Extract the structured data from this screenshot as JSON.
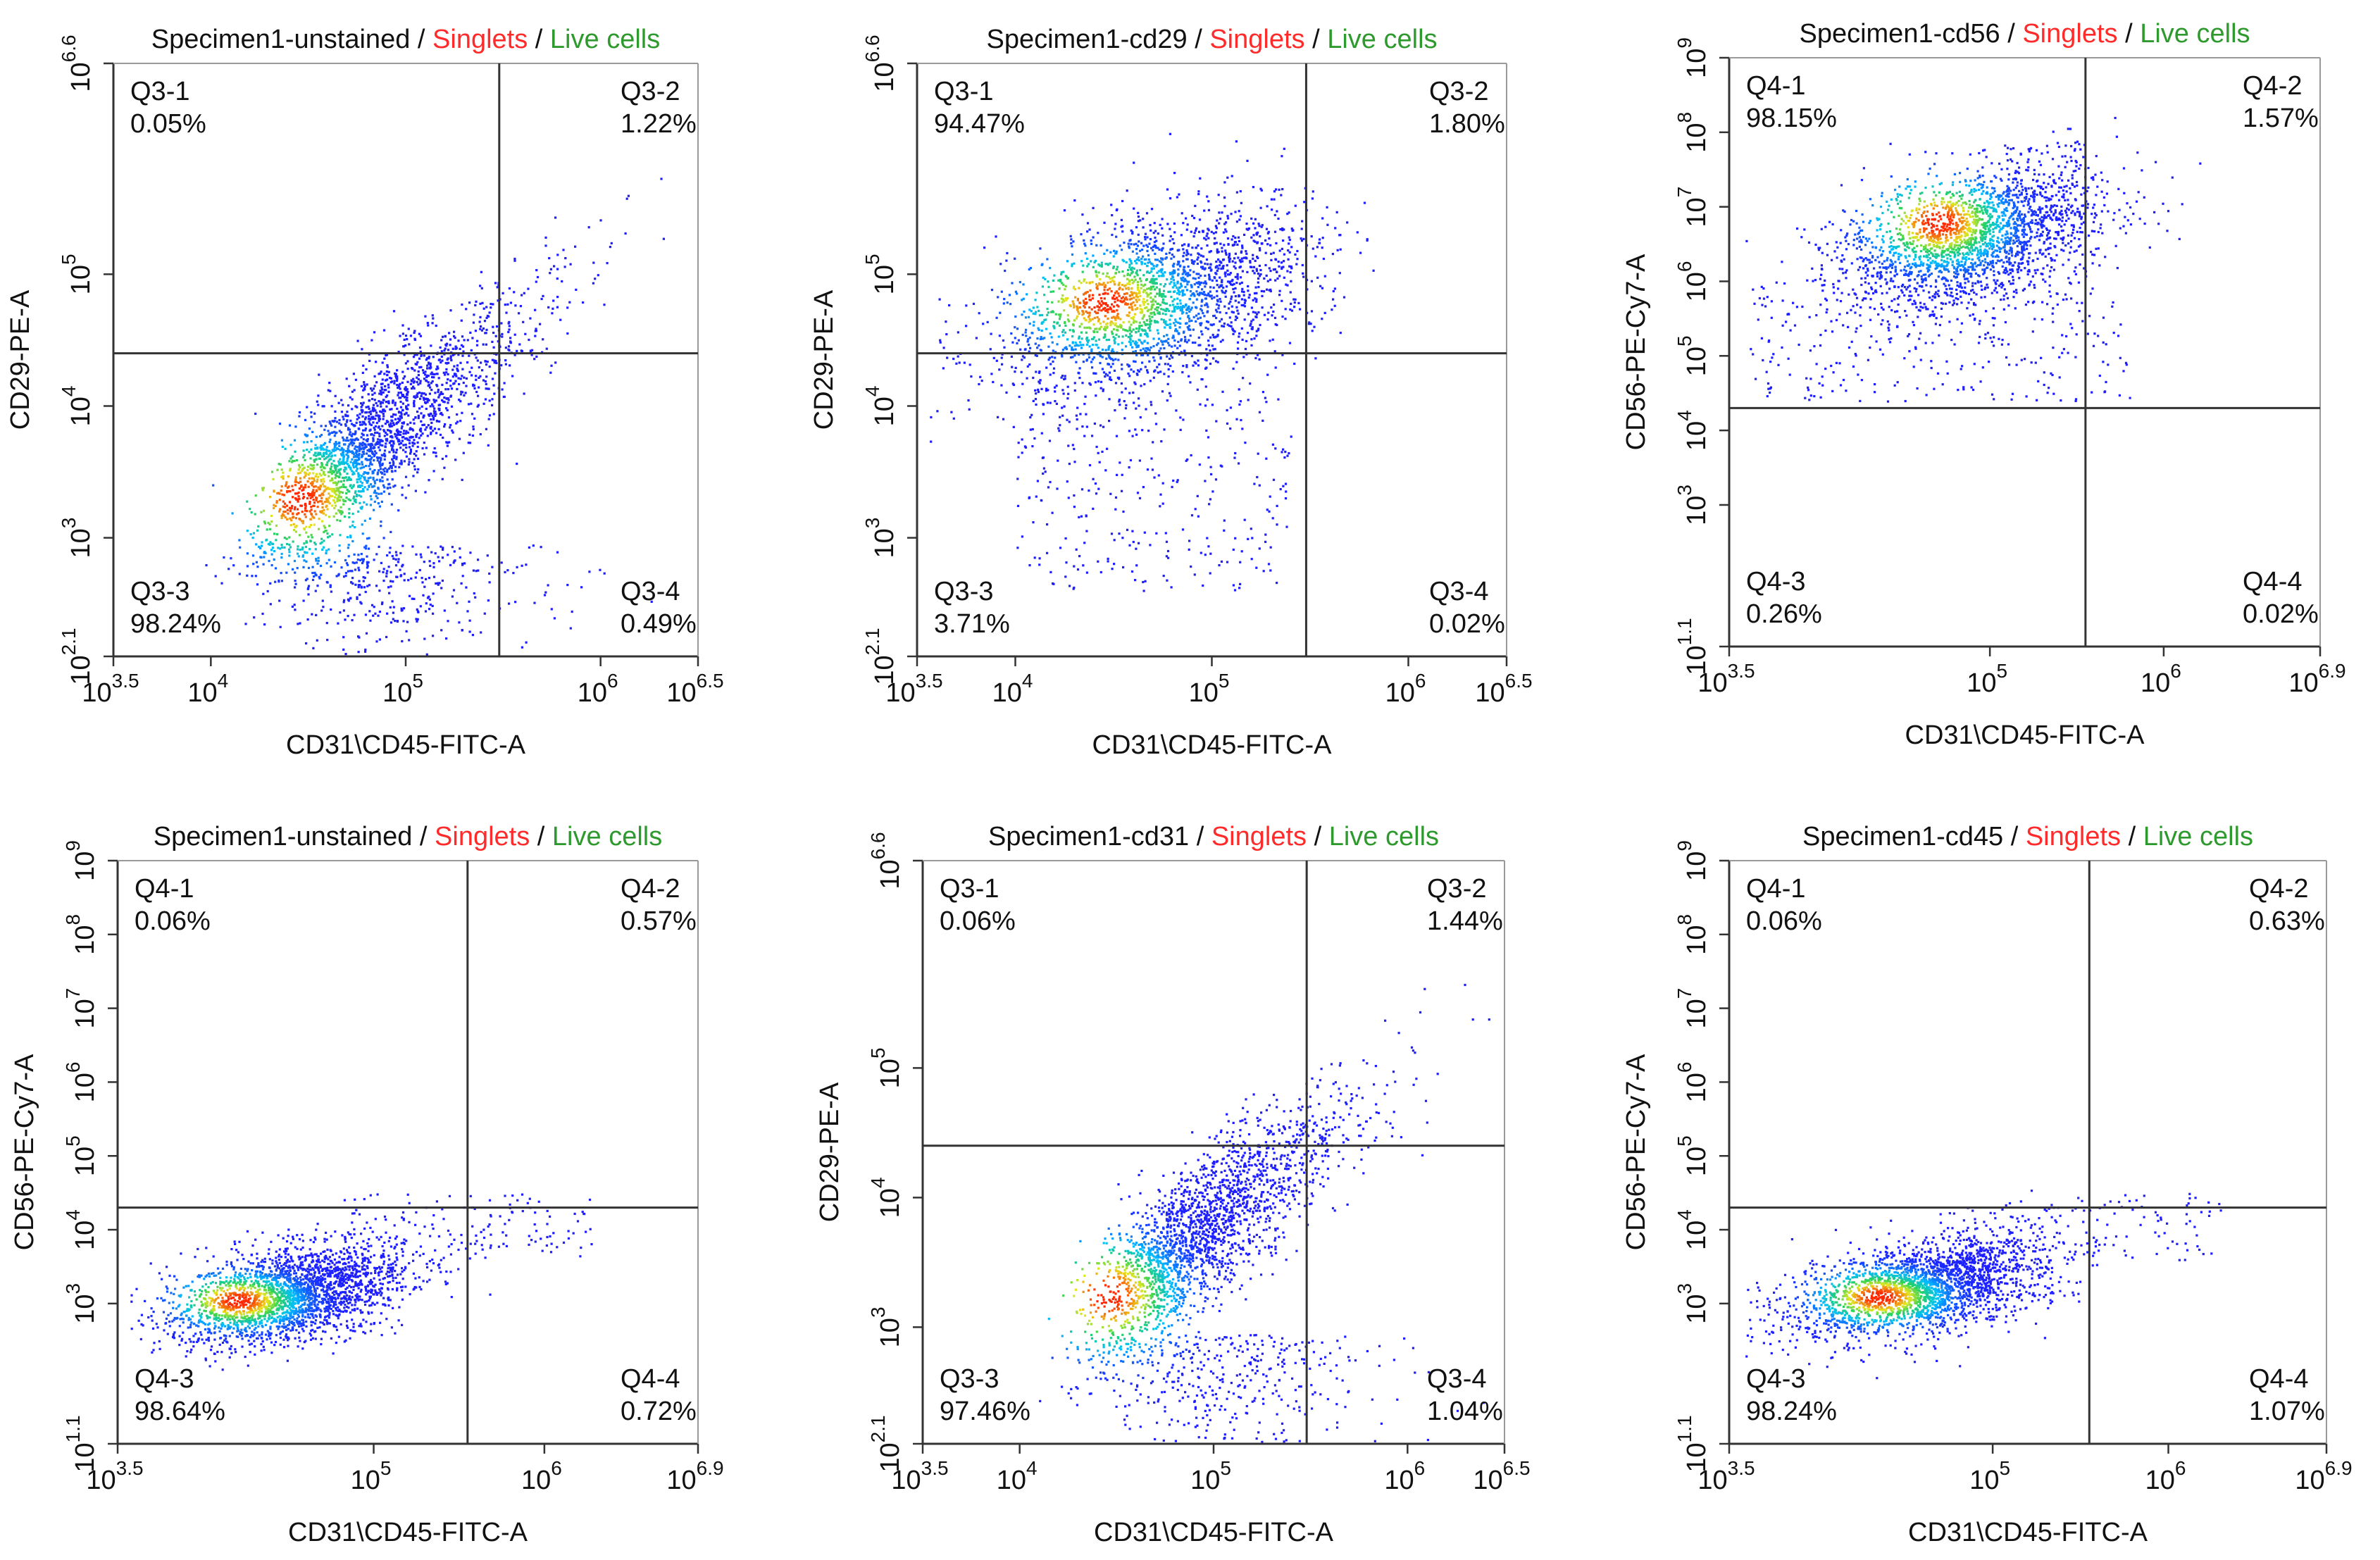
{
  "colors": {
    "singlets": "#ff2a2a",
    "live_cells": "#2e9a2e",
    "axis": "#333333",
    "gate": "#333333",
    "density_low": "#1a1aff",
    "density_mid": "#22cc66",
    "density_high": "#ff3300"
  },
  "chart_data": [
    {
      "type": "scatter",
      "title": {
        "specimen": "Specimen1-unstained",
        "sep1": " / ",
        "singlets": "Singlets",
        "sep2": " / ",
        "live": "Live cells"
      },
      "xlabel": "CD31\\CD45-FITC-A",
      "ylabel": "CD29-PE-A",
      "xlim": [
        3.5,
        6.5
      ],
      "ylim": [
        2.1,
        6.6
      ],
      "x_ticks": [
        {
          "base": "10",
          "exp": "3.5",
          "v": 3.5
        },
        {
          "base": "10",
          "exp": "4",
          "v": 4
        },
        {
          "base": "10",
          "exp": "5",
          "v": 5
        },
        {
          "base": "10",
          "exp": "6",
          "v": 6
        },
        {
          "base": "10",
          "exp": "6.5",
          "v": 6.5
        }
      ],
      "y_ticks": [
        {
          "base": "10",
          "exp": "2.1",
          "v": 2.1
        },
        {
          "base": "10",
          "exp": "3",
          "v": 3
        },
        {
          "base": "10",
          "exp": "4",
          "v": 4
        },
        {
          "base": "10",
          "exp": "5",
          "v": 5
        },
        {
          "base": "10",
          "exp": "6.6",
          "v": 6.6
        }
      ],
      "gate": {
        "x": 5.48,
        "y": 4.4
      },
      "quadrants": [
        {
          "name": "Q3-1",
          "value": "0.05%"
        },
        {
          "name": "Q3-2",
          "value": "1.22%"
        },
        {
          "name": "Q3-3",
          "value": "98.24%"
        },
        {
          "name": "Q3-4",
          "value": "0.49%"
        }
      ],
      "population": {
        "shape": "diagonal",
        "cx": 4.45,
        "cy": 3.3,
        "peak_x": 4.45,
        "peak_y": 3.3
      }
    },
    {
      "type": "scatter",
      "title": {
        "specimen": "Specimen1-cd29",
        "sep1": " / ",
        "singlets": "Singlets",
        "sep2": " / ",
        "live": "Live cells"
      },
      "xlabel": "CD31\\CD45-FITC-A",
      "ylabel": "CD29-PE-A",
      "xlim": [
        3.5,
        6.5
      ],
      "ylim": [
        2.1,
        6.6
      ],
      "x_ticks": [
        {
          "base": "10",
          "exp": "3.5",
          "v": 3.5
        },
        {
          "base": "10",
          "exp": "4",
          "v": 4
        },
        {
          "base": "10",
          "exp": "5",
          "v": 5
        },
        {
          "base": "10",
          "exp": "6",
          "v": 6
        },
        {
          "base": "10",
          "exp": "6.5",
          "v": 6.5
        }
      ],
      "y_ticks": [
        {
          "base": "10",
          "exp": "2.1",
          "v": 2.1
        },
        {
          "base": "10",
          "exp": "3",
          "v": 3
        },
        {
          "base": "10",
          "exp": "4",
          "v": 4
        },
        {
          "base": "10",
          "exp": "5",
          "v": 5
        },
        {
          "base": "10",
          "exp": "6.6",
          "v": 6.6
        }
      ],
      "gate": {
        "x": 5.48,
        "y": 4.4
      },
      "quadrants": [
        {
          "name": "Q3-1",
          "value": "94.47%"
        },
        {
          "name": "Q3-2",
          "value": "1.80%"
        },
        {
          "name": "Q3-3",
          "value": "3.71%"
        },
        {
          "name": "Q3-4",
          "value": "0.02%"
        }
      ],
      "population": {
        "shape": "blob",
        "cx": 4.6,
        "cy": 4.8,
        "peak_x": 4.45,
        "peak_y": 4.8
      }
    },
    {
      "type": "scatter",
      "title": {
        "specimen": "Specimen1-cd56",
        "sep1": " / ",
        "singlets": "Singlets",
        "sep2": " / ",
        "live": "Live cells"
      },
      "xlabel": "CD31\\CD45-FITC-A",
      "ylabel": "CD56-PE-Cy7-A",
      "xlim": [
        3.5,
        6.9
      ],
      "ylim": [
        1.1,
        9
      ],
      "x_ticks": [
        {
          "base": "10",
          "exp": "3.5",
          "v": 3.5
        },
        {
          "base": "10",
          "exp": "5",
          "v": 5
        },
        {
          "base": "10",
          "exp": "6",
          "v": 6
        },
        {
          "base": "10",
          "exp": "6.9",
          "v": 6.9
        }
      ],
      "y_ticks": [
        {
          "base": "10",
          "exp": "1.1",
          "v": 1.1
        },
        {
          "base": "10",
          "exp": "3",
          "v": 3
        },
        {
          "base": "10",
          "exp": "4",
          "v": 4
        },
        {
          "base": "10",
          "exp": "5",
          "v": 5
        },
        {
          "base": "10",
          "exp": "6",
          "v": 6
        },
        {
          "base": "10",
          "exp": "7",
          "v": 7
        },
        {
          "base": "10",
          "exp": "8",
          "v": 8
        },
        {
          "base": "10",
          "exp": "9",
          "v": 9
        }
      ],
      "gate": {
        "x": 5.55,
        "y": 4.3
      },
      "quadrants": [
        {
          "name": "Q4-1",
          "value": "98.15%"
        },
        {
          "name": "Q4-2",
          "value": "1.57%"
        },
        {
          "name": "Q4-3",
          "value": "0.26%"
        },
        {
          "name": "Q4-4",
          "value": "0.02%"
        }
      ],
      "population": {
        "shape": "blob_high",
        "cx": 4.9,
        "cy": 6.6,
        "peak_x": 4.7,
        "peak_y": 6.8
      }
    },
    {
      "type": "scatter",
      "title": {
        "specimen": "Specimen1-unstained",
        "sep1": " / ",
        "singlets": "Singlets",
        "sep2": " / ",
        "live": "Live cells"
      },
      "xlabel": "CD31\\CD45-FITC-A",
      "ylabel": "CD56-PE-Cy7-A",
      "xlim": [
        3.5,
        6.9
      ],
      "ylim": [
        1.1,
        9
      ],
      "x_ticks": [
        {
          "base": "10",
          "exp": "3.5",
          "v": 3.5
        },
        {
          "base": "10",
          "exp": "5",
          "v": 5
        },
        {
          "base": "10",
          "exp": "6",
          "v": 6
        },
        {
          "base": "10",
          "exp": "6.9",
          "v": 6.9
        }
      ],
      "y_ticks": [
        {
          "base": "10",
          "exp": "1.1",
          "v": 1.1
        },
        {
          "base": "10",
          "exp": "3",
          "v": 3
        },
        {
          "base": "10",
          "exp": "4",
          "v": 4
        },
        {
          "base": "10",
          "exp": "5",
          "v": 5
        },
        {
          "base": "10",
          "exp": "6",
          "v": 6
        },
        {
          "base": "10",
          "exp": "7",
          "v": 7
        },
        {
          "base": "10",
          "exp": "8",
          "v": 8
        },
        {
          "base": "10",
          "exp": "9",
          "v": 9
        }
      ],
      "gate": {
        "x": 5.55,
        "y": 4.3
      },
      "quadrants": [
        {
          "name": "Q4-1",
          "value": "0.06%"
        },
        {
          "name": "Q4-2",
          "value": "0.57%"
        },
        {
          "name": "Q4-3",
          "value": "98.64%"
        },
        {
          "name": "Q4-4",
          "value": "0.72%"
        }
      ],
      "population": {
        "shape": "flat",
        "cx": 4.4,
        "cy": 3.1,
        "peak_x": 4.2,
        "peak_y": 3.05
      }
    },
    {
      "type": "scatter",
      "title": {
        "specimen": "Specimen1-cd31",
        "sep1": " / ",
        "singlets": "Singlets",
        "sep2": " / ",
        "live": "Live cells"
      },
      "xlabel": "CD31\\CD45-FITC-A",
      "ylabel": "CD29-PE-A",
      "xlim": [
        3.5,
        6.5
      ],
      "ylim": [
        2.1,
        6.6
      ],
      "x_ticks": [
        {
          "base": "10",
          "exp": "3.5",
          "v": 3.5
        },
        {
          "base": "10",
          "exp": "4",
          "v": 4
        },
        {
          "base": "10",
          "exp": "5",
          "v": 5
        },
        {
          "base": "10",
          "exp": "6",
          "v": 6
        },
        {
          "base": "10",
          "exp": "6.5",
          "v": 6.5
        }
      ],
      "y_ticks": [
        {
          "base": "10",
          "exp": "2.1",
          "v": 2.1
        },
        {
          "base": "10",
          "exp": "3",
          "v": 3
        },
        {
          "base": "10",
          "exp": "4",
          "v": 4
        },
        {
          "base": "10",
          "exp": "5",
          "v": 5
        },
        {
          "base": "10",
          "exp": "6.6",
          "v": 6.6
        }
      ],
      "gate": {
        "x": 5.48,
        "y": 4.4
      },
      "quadrants": [
        {
          "name": "Q3-1",
          "value": "0.06%"
        },
        {
          "name": "Q3-2",
          "value": "1.44%"
        },
        {
          "name": "Q3-3",
          "value": "97.46%"
        },
        {
          "name": "Q3-4",
          "value": "1.04%"
        }
      ],
      "population": {
        "shape": "diagonal",
        "cx": 4.55,
        "cy": 3.3,
        "peak_x": 4.45,
        "peak_y": 3.25
      }
    },
    {
      "type": "scatter",
      "title": {
        "specimen": "Specimen1-cd45",
        "sep1": " / ",
        "singlets": "Singlets",
        "sep2": " / ",
        "live": "Live cells"
      },
      "xlabel": "CD31\\CD45-FITC-A",
      "ylabel": "CD56-PE-Cy7-A",
      "xlim": [
        3.5,
        6.9
      ],
      "ylim": [
        1.1,
        9
      ],
      "x_ticks": [
        {
          "base": "10",
          "exp": "3.5",
          "v": 3.5
        },
        {
          "base": "10",
          "exp": "5",
          "v": 5
        },
        {
          "base": "10",
          "exp": "6",
          "v": 6
        },
        {
          "base": "10",
          "exp": "6.9",
          "v": 6.9
        }
      ],
      "y_ticks": [
        {
          "base": "10",
          "exp": "1.1",
          "v": 1.1
        },
        {
          "base": "10",
          "exp": "3",
          "v": 3
        },
        {
          "base": "10",
          "exp": "4",
          "v": 4
        },
        {
          "base": "10",
          "exp": "5",
          "v": 5
        },
        {
          "base": "10",
          "exp": "6",
          "v": 6
        },
        {
          "base": "10",
          "exp": "7",
          "v": 7
        },
        {
          "base": "10",
          "exp": "8",
          "v": 8
        },
        {
          "base": "10",
          "exp": "9",
          "v": 9
        }
      ],
      "gate": {
        "x": 5.55,
        "y": 4.3
      },
      "quadrants": [
        {
          "name": "Q4-1",
          "value": "0.06%"
        },
        {
          "name": "Q4-2",
          "value": "0.63%"
        },
        {
          "name": "Q4-3",
          "value": "98.24%"
        },
        {
          "name": "Q4-4",
          "value": "1.07%"
        }
      ],
      "population": {
        "shape": "flat",
        "cx": 4.5,
        "cy": 3.2,
        "peak_x": 4.35,
        "peak_y": 3.1
      }
    }
  ]
}
